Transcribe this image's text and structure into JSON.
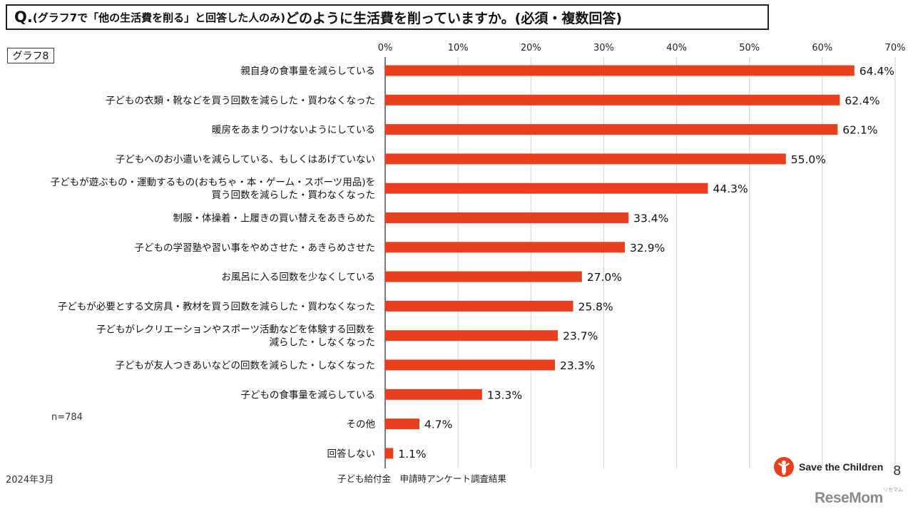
{
  "title": {
    "q": "Q.",
    "sub": "(グラフ7で「他の生活費を削る」と回答した人のみ)",
    "main": "どのように生活費を削っていますか。(必須・複数回答)"
  },
  "graph_label": "グラフ8",
  "n_note": "n=784",
  "date": "2024年3月",
  "source": "子ども給付金　申請時アンケート調査結果",
  "page_number": "8",
  "brand": {
    "name": "Save the Children",
    "color": "#e8401c"
  },
  "watermark": "ReseMom",
  "watermark_sub": "リセマム",
  "chart_data": {
    "type": "bar",
    "orientation": "horizontal",
    "categories": [
      [
        "親自身の食事量を減らしている"
      ],
      [
        "子どもの衣類・靴などを買う回数を減らした・買わなくなった"
      ],
      [
        "暖房をあまりつけないようにしている"
      ],
      [
        "子どもへのお小遣いを減らしている、もしくはあげていない"
      ],
      [
        "子どもが遊ぶもの・運動するもの(おもちゃ・本・ゲーム・スポーツ用品)を",
        "買う回数を減らした・買わなくなった"
      ],
      [
        "制服・体操着・上履きの買い替えをあきらめた"
      ],
      [
        "子どもの学習塾や習い事をやめさせた・あきらめさせた"
      ],
      [
        "お風呂に入る回数を少なくしている"
      ],
      [
        "子どもが必要とする文房具・教材を買う回数を減らした・買わなくなった"
      ],
      [
        "子どもがレクリエーションやスポーツ活動などを体験する回数を",
        "減らした・しなくなった"
      ],
      [
        "子どもが友人つきあいなどの回数を減らした・しなくなった"
      ],
      [
        "子どもの食事量を減らしている"
      ],
      [
        "その他"
      ],
      [
        "回答しない"
      ]
    ],
    "values": [
      64.4,
      62.4,
      62.1,
      55.0,
      44.3,
      33.4,
      32.9,
      27.0,
      25.8,
      23.7,
      23.3,
      13.3,
      4.7,
      1.1
    ],
    "value_labels": [
      "64.4%",
      "62.4%",
      "62.1%",
      "55.0%",
      "44.3%",
      "33.4%",
      "32.9%",
      "27.0%",
      "25.8%",
      "23.7%",
      "23.3%",
      "13.3%",
      "4.7%",
      "1.1%"
    ],
    "xlim": [
      0,
      70
    ],
    "ticks": [
      "0%",
      "10%",
      "20%",
      "30%",
      "40%",
      "50%",
      "60%",
      "70%"
    ],
    "grid": true,
    "bar_color": "#e8401c",
    "grid_color": "#cfcfcf"
  }
}
